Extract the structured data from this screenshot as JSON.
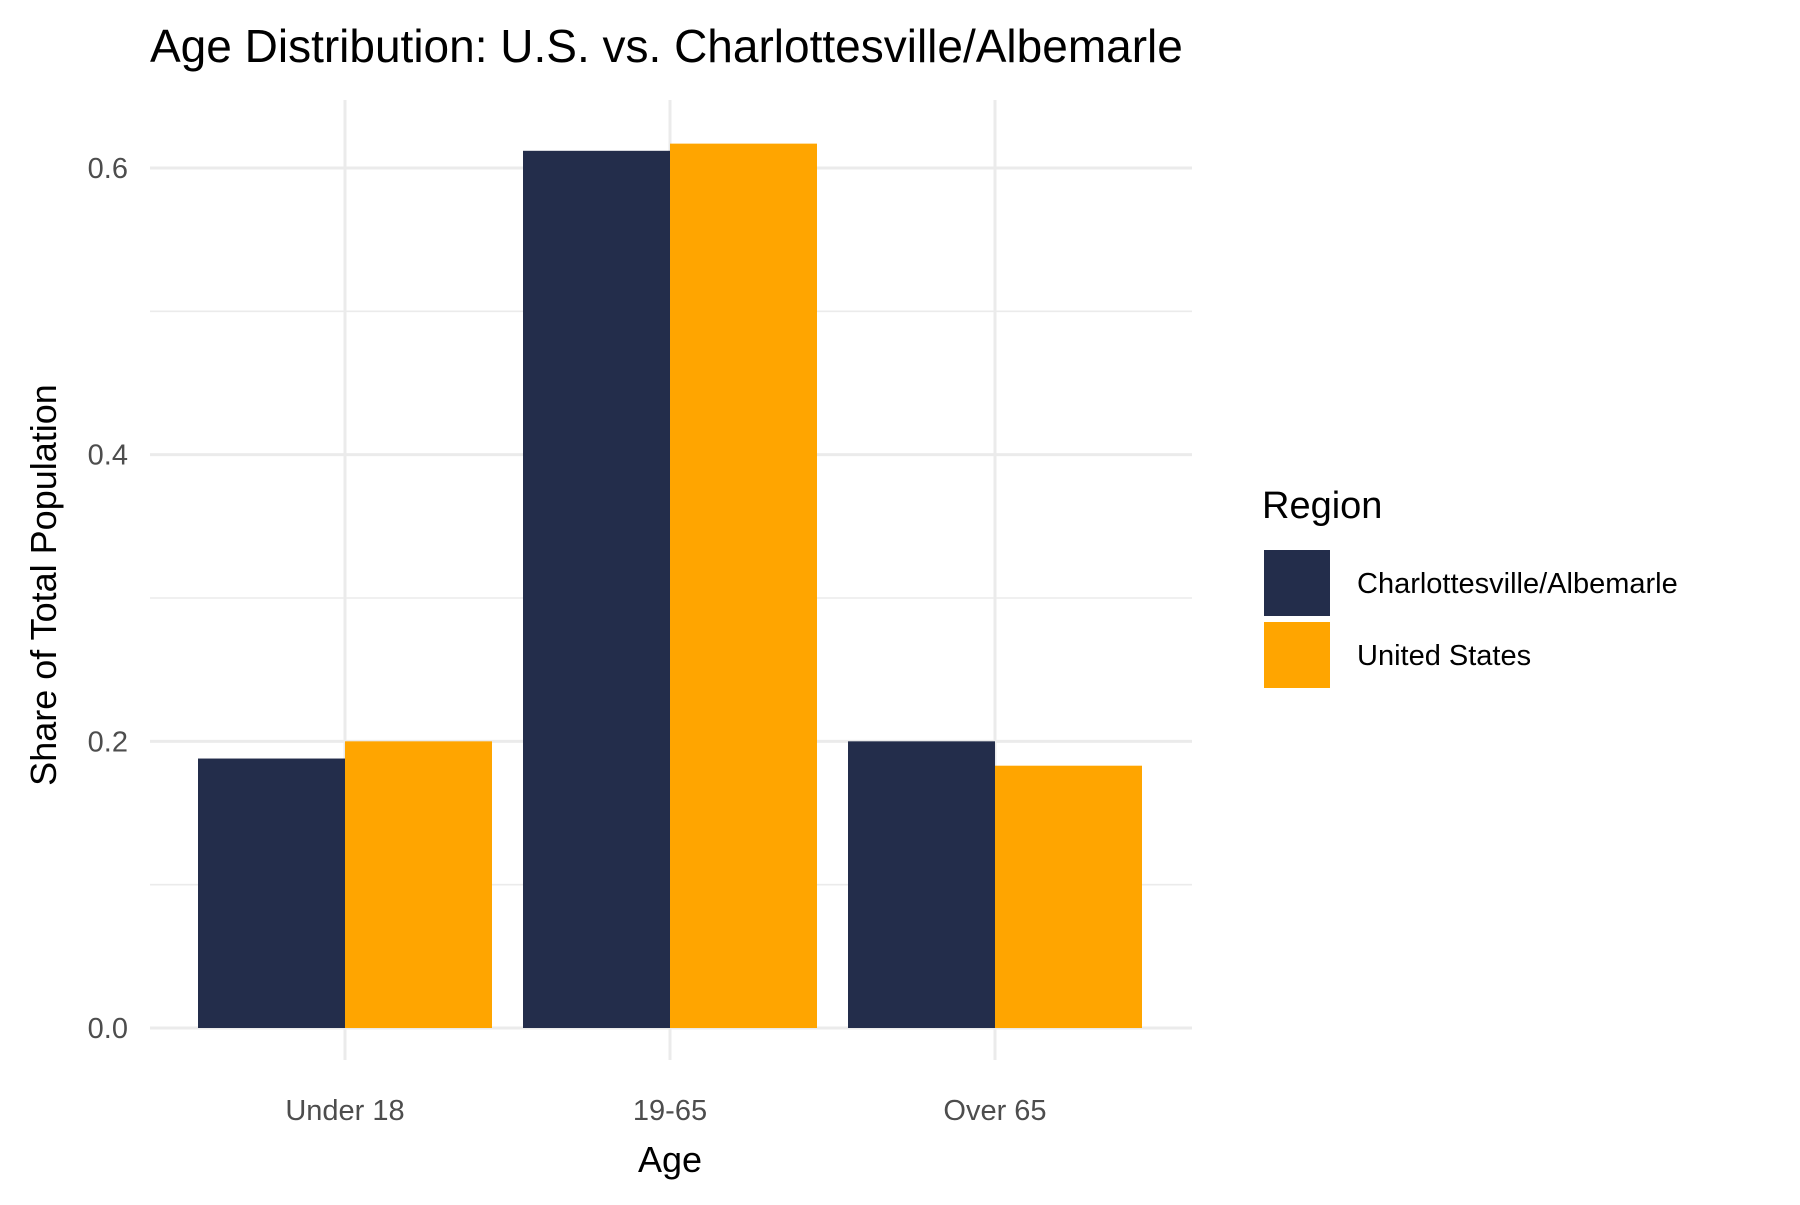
{
  "chart_data": {
    "type": "bar",
    "title": "Age Distribution: U.S. vs. Charlottesville/Albemarle",
    "xlabel": "Age",
    "ylabel": "Share of Total Population",
    "categories": [
      "Under 18",
      "19-65",
      "Over 65"
    ],
    "series": [
      {
        "name": "Charlottesville/Albemarle",
        "color": "#232d4b",
        "values": [
          0.188,
          0.612,
          0.2
        ]
      },
      {
        "name": "United States",
        "color": "#ffa500",
        "values": [
          0.2,
          0.617,
          0.183
        ]
      }
    ],
    "ylim": [
      0,
      0.65
    ],
    "yticks": [
      0.0,
      0.2,
      0.4,
      0.6
    ],
    "ytick_labels": [
      "0.0",
      "0.2",
      "0.4",
      "0.6"
    ],
    "grid": true,
    "legend": {
      "title": "Region",
      "position": "right"
    }
  }
}
